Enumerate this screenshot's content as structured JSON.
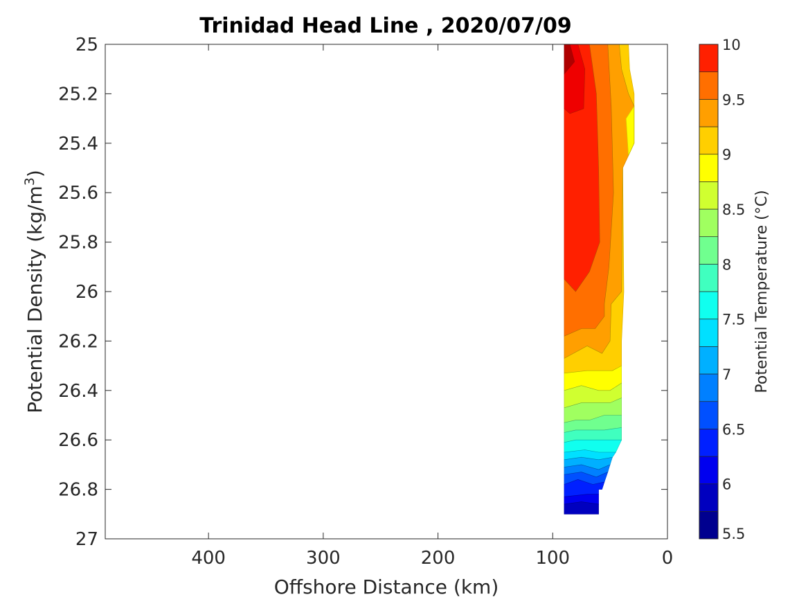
{
  "chart_data": {
    "type": "contour",
    "title": "Trinidad Head Line , 2020/07/09",
    "xlabel": "Offshore Distance (km)",
    "ylabel_main": "Potential Density (kg/m",
    "ylabel_sup": "3",
    "ylabel_end": ")",
    "x_axis": {
      "range": [
        490,
        0
      ],
      "reversed": true,
      "ticks": [
        400,
        300,
        200,
        100,
        0
      ],
      "tick_labels": [
        "400",
        "300",
        "200",
        "100",
        "0"
      ]
    },
    "y_axis": {
      "range": [
        25,
        27
      ],
      "reversed": true,
      "ticks": [
        25,
        25.2,
        25.4,
        25.6,
        25.8,
        26,
        26.2,
        26.4,
        26.6,
        26.8,
        27
      ],
      "tick_labels": [
        "25",
        "25.2",
        "25.4",
        "25.6",
        "25.8",
        "26",
        "26.2",
        "26.4",
        "26.6",
        "26.8",
        "27"
      ]
    },
    "colorbar": {
      "label": "Potential Temperature (°C)",
      "range": [
        5.5,
        10
      ],
      "tick_values": [
        5.5,
        6,
        6.5,
        7,
        7.5,
        8,
        8.5,
        9,
        9.5,
        10
      ],
      "tick_labels": [
        "5.5",
        "6",
        "6.5",
        "7",
        "7.5",
        "8",
        "8.5",
        "9",
        "9.5",
        "10"
      ],
      "levels": [
        5.5,
        5.75,
        6,
        6.25,
        6.5,
        6.75,
        7,
        7.25,
        7.5,
        7.75,
        8,
        8.25,
        8.5,
        8.75,
        9,
        9.25,
        9.5,
        9.75,
        10
      ],
      "colors": [
        "#00008f",
        "#0000bf",
        "#0000ef",
        "#0020ff",
        "#0050ff",
        "#0080ff",
        "#00b0ff",
        "#00e0ff",
        "#10ffef",
        "#40ffbf",
        "#70ff8f",
        "#a0ff60",
        "#d0ff30",
        "#ffff00",
        "#ffcf00",
        "#ff9f00",
        "#ff6f00",
        "#ff2000",
        "#ef0000",
        "#af0000"
      ]
    },
    "bands": [
      {
        "level": 9.75,
        "color": "#af0000",
        "points": [
          [
            90,
            25.0
          ],
          [
            85,
            25.0
          ],
          [
            81,
            25.07
          ],
          [
            90,
            25.12
          ]
        ]
      },
      {
        "level": 9.5,
        "color": "#ef0000",
        "points": [
          [
            85,
            25.0
          ],
          [
            78,
            25.0
          ],
          [
            72,
            25.1
          ],
          [
            73,
            25.26
          ],
          [
            85,
            25.28
          ],
          [
            90,
            25.26
          ],
          [
            90,
            25.12
          ],
          [
            81,
            25.07
          ]
        ]
      },
      {
        "level": 9.25,
        "color": "#ff2000",
        "points": [
          [
            78,
            25.0
          ],
          [
            68,
            25.0
          ],
          [
            62,
            25.2
          ],
          [
            60,
            25.5
          ],
          [
            59,
            25.8
          ],
          [
            68,
            25.92
          ],
          [
            80,
            26.0
          ],
          [
            90,
            25.95
          ],
          [
            90,
            25.26
          ],
          [
            85,
            25.28
          ],
          [
            73,
            25.26
          ],
          [
            72,
            25.1
          ]
        ]
      },
      {
        "level": 9.0,
        "color": "#ff6f00",
        "points": [
          [
            68,
            25.0
          ],
          [
            52,
            25.0
          ],
          [
            49,
            25.25
          ],
          [
            47,
            25.6
          ],
          [
            51,
            25.9
          ],
          [
            55,
            26.05
          ],
          [
            55,
            26.1
          ],
          [
            63,
            26.15
          ],
          [
            75,
            26.15
          ],
          [
            90,
            26.18
          ],
          [
            90,
            25.95
          ],
          [
            80,
            26.0
          ],
          [
            68,
            25.92
          ],
          [
            59,
            25.8
          ],
          [
            60,
            25.5
          ],
          [
            62,
            25.2
          ]
        ]
      },
      {
        "level": 8.75,
        "color": "#ff9f00",
        "points": [
          [
            52,
            25.0
          ],
          [
            42,
            25.0
          ],
          [
            40,
            25.1
          ],
          [
            34,
            25.2
          ],
          [
            29,
            25.25
          ],
          [
            29,
            25.4
          ],
          [
            34,
            25.45
          ],
          [
            39,
            25.5
          ],
          [
            40,
            26.0
          ],
          [
            49,
            26.05
          ],
          [
            50,
            26.2
          ],
          [
            57,
            26.25
          ],
          [
            70,
            26.22
          ],
          [
            90,
            26.27
          ],
          [
            90,
            26.18
          ],
          [
            75,
            26.15
          ],
          [
            63,
            26.15
          ],
          [
            55,
            26.1
          ],
          [
            55,
            26.05
          ],
          [
            51,
            25.9
          ],
          [
            47,
            25.6
          ],
          [
            49,
            25.25
          ]
        ]
      },
      {
        "level": 8.5,
        "color": "#ffcf00",
        "points": [
          [
            42,
            25.0
          ],
          [
            34,
            25.0
          ],
          [
            33,
            25.1
          ],
          [
            29,
            25.2
          ],
          [
            29,
            25.25
          ],
          [
            34,
            25.2
          ],
          [
            40,
            25.1
          ]
        ]
      },
      {
        "level": 8.5,
        "color": "#ffcf00",
        "points": [
          [
            39,
            25.5
          ],
          [
            38,
            26.0
          ],
          [
            40,
            26.2
          ],
          [
            40,
            26.3
          ],
          [
            48,
            26.32
          ],
          [
            58,
            26.32
          ],
          [
            70,
            26.32
          ],
          [
            90,
            26.33
          ],
          [
            90,
            26.27
          ],
          [
            70,
            26.22
          ],
          [
            57,
            26.25
          ],
          [
            50,
            26.2
          ],
          [
            49,
            26.05
          ],
          [
            40,
            26.0
          ]
        ]
      },
      {
        "level": 8.25,
        "color": "#ffff00",
        "points": [
          [
            29,
            25.25
          ],
          [
            29,
            25.4
          ],
          [
            34,
            25.45
          ],
          [
            36,
            25.3
          ]
        ]
      },
      {
        "level": 8.25,
        "color": "#ffff00",
        "points": [
          [
            40,
            26.3
          ],
          [
            40,
            26.37
          ],
          [
            50,
            26.4
          ],
          [
            60,
            26.4
          ],
          [
            75,
            26.38
          ],
          [
            90,
            26.4
          ],
          [
            90,
            26.33
          ],
          [
            70,
            26.32
          ],
          [
            58,
            26.32
          ],
          [
            48,
            26.32
          ]
        ]
      },
      {
        "level": 8.0,
        "color": "#d0ff30",
        "points": [
          [
            40,
            26.37
          ],
          [
            40,
            26.43
          ],
          [
            50,
            26.45
          ],
          [
            62,
            26.45
          ],
          [
            75,
            26.45
          ],
          [
            90,
            26.47
          ],
          [
            90,
            26.4
          ],
          [
            75,
            26.38
          ],
          [
            60,
            26.4
          ],
          [
            50,
            26.4
          ]
        ]
      },
      {
        "level": 7.75,
        "color": "#a0ff60",
        "points": [
          [
            40,
            26.43
          ],
          [
            40,
            26.5
          ],
          [
            55,
            26.5
          ],
          [
            68,
            26.52
          ],
          [
            80,
            26.52
          ],
          [
            90,
            26.53
          ],
          [
            90,
            26.47
          ],
          [
            75,
            26.45
          ],
          [
            62,
            26.45
          ],
          [
            50,
            26.45
          ]
        ]
      },
      {
        "level": 7.5,
        "color": "#70ff8f",
        "points": [
          [
            40,
            26.5
          ],
          [
            40,
            26.55
          ],
          [
            55,
            26.56
          ],
          [
            68,
            26.56
          ],
          [
            80,
            26.56
          ],
          [
            90,
            26.57
          ],
          [
            90,
            26.53
          ],
          [
            80,
            26.52
          ],
          [
            68,
            26.52
          ],
          [
            55,
            26.5
          ]
        ]
      },
      {
        "level": 7.25,
        "color": "#40ffbf",
        "points": [
          [
            40,
            26.55
          ],
          [
            40,
            26.6
          ],
          [
            55,
            26.6
          ],
          [
            68,
            26.6
          ],
          [
            80,
            26.6
          ],
          [
            90,
            26.61
          ],
          [
            90,
            26.57
          ],
          [
            80,
            26.56
          ],
          [
            68,
            26.56
          ],
          [
            55,
            26.56
          ]
        ]
      },
      {
        "level": 7.0,
        "color": "#10ffef",
        "points": [
          [
            40,
            26.6
          ],
          [
            45,
            26.65
          ],
          [
            60,
            26.65
          ],
          [
            72,
            26.64
          ],
          [
            90,
            26.65
          ],
          [
            90,
            26.61
          ],
          [
            80,
            26.6
          ],
          [
            68,
            26.6
          ],
          [
            55,
            26.6
          ]
        ]
      },
      {
        "level": 6.75,
        "color": "#00e0ff",
        "points": [
          [
            45,
            26.65
          ],
          [
            48,
            26.67
          ],
          [
            60,
            26.68
          ],
          [
            75,
            26.67
          ],
          [
            90,
            26.68
          ],
          [
            90,
            26.65
          ],
          [
            72,
            26.64
          ],
          [
            60,
            26.65
          ]
        ]
      },
      {
        "level": 6.5,
        "color": "#00b0ff",
        "points": [
          [
            48,
            26.67
          ],
          [
            50,
            26.7
          ],
          [
            60,
            26.72
          ],
          [
            75,
            26.7
          ],
          [
            90,
            26.71
          ],
          [
            90,
            26.68
          ],
          [
            75,
            26.67
          ],
          [
            60,
            26.68
          ]
        ]
      },
      {
        "level": 6.25,
        "color": "#0080ff",
        "points": [
          [
            50,
            26.7
          ],
          [
            52,
            26.73
          ],
          [
            62,
            26.75
          ],
          [
            75,
            26.73
          ],
          [
            90,
            26.74
          ],
          [
            90,
            26.71
          ],
          [
            75,
            26.7
          ],
          [
            60,
            26.72
          ]
        ]
      },
      {
        "level": 6.0,
        "color": "#0050ff",
        "points": [
          [
            52,
            26.73
          ],
          [
            55,
            26.77
          ],
          [
            65,
            26.78
          ],
          [
            78,
            26.76
          ],
          [
            90,
            26.78
          ],
          [
            90,
            26.74
          ],
          [
            75,
            26.73
          ],
          [
            62,
            26.75
          ]
        ]
      },
      {
        "level": 5.75,
        "color": "#0020ff",
        "points": [
          [
            55,
            26.77
          ],
          [
            57,
            26.8
          ],
          [
            60,
            26.8
          ],
          [
            60,
            26.82
          ],
          [
            70,
            26.82
          ],
          [
            90,
            26.83
          ],
          [
            90,
            26.78
          ],
          [
            78,
            26.76
          ],
          [
            65,
            26.78
          ]
        ]
      },
      {
        "level": 5.5,
        "color": "#0000ef",
        "points": [
          [
            60,
            26.82
          ],
          [
            60,
            26.86
          ],
          [
            75,
            26.85
          ],
          [
            90,
            26.86
          ],
          [
            90,
            26.83
          ],
          [
            70,
            26.82
          ]
        ]
      },
      {
        "level": 5.5,
        "color": "#0000bf",
        "points": [
          [
            60,
            26.86
          ],
          [
            60,
            26.9
          ],
          [
            90,
            26.9
          ],
          [
            90,
            26.86
          ],
          [
            75,
            26.85
          ]
        ]
      }
    ]
  }
}
